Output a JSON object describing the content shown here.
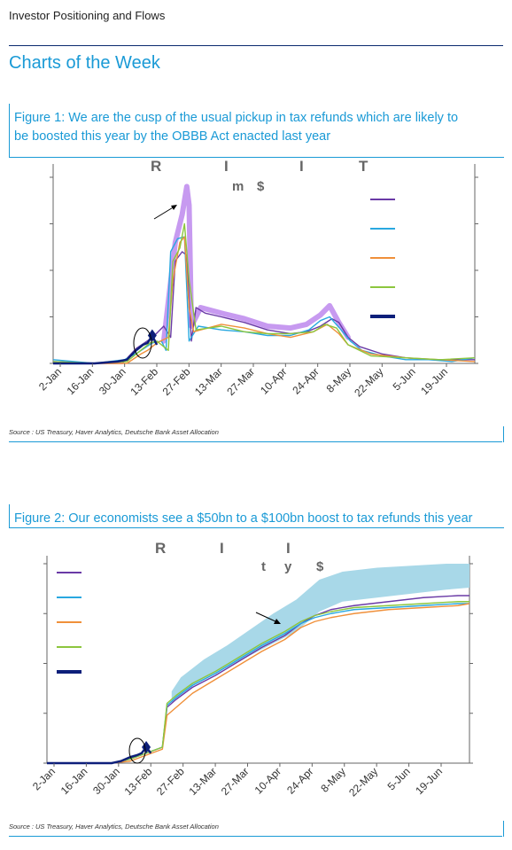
{
  "header": {
    "title": "Investor Positioning and Flows"
  },
  "section_title": "Charts of the Week",
  "figure1": {
    "title_line1": "Figure 1: We are the cusp of the usual pickup in tax refunds which are likely to",
    "title_line2": "be boosted this year by the OBBB Act enacted last year",
    "source": "Source : US Treasury, Haver Analytics, Deutsche Bank Asset Allocation",
    "chart_title_fragments": [
      "R",
      "I",
      "I",
      "T"
    ],
    "chart_subtitle_fragments": [
      "m",
      "$"
    ]
  },
  "figure2": {
    "title": "Figure 2: Our economists see a $50bn to a $100bn boost to tax refunds this year",
    "source": "Source : US Treasury, Haver Analytics, Deutsche Bank Asset Allocation",
    "chart_title_fragments": [
      "R",
      "I",
      "I"
    ],
    "chart_subtitle_fragments": [
      "t",
      "y",
      "$"
    ]
  },
  "colors": {
    "accent_blue": "#1a9ad6",
    "navy": "#0a2a6e",
    "purple": "#6a3aa6",
    "light_blue": "#29a8e0",
    "orange": "#f0903a",
    "green": "#8cc63e",
    "dark_navy": "#0d1f7a",
    "lavender": "#c79af0",
    "band": "#a8d8e8"
  },
  "chart_data": [
    {
      "type": "line",
      "x_ticks": [
        "2-Jan",
        "16-Jan",
        "30-Jan",
        "13-Feb",
        "27-Feb",
        "13-Mar",
        "27-Mar",
        "10-Apr",
        "24-Apr",
        "8-May",
        "22-May",
        "5-Jun",
        "19-Jun"
      ],
      "x_range": [
        2,
        185
      ],
      "ylim": [
        0,
        100
      ],
      "grid": false,
      "legend_entries": 5,
      "legend_position": "right",
      "series": [
        {
          "color": "#6a3aa6",
          "points": [
            [
              2,
              1
            ],
            [
              20,
              0
            ],
            [
              32,
              0
            ],
            [
              38,
              8
            ],
            [
              44,
              13
            ],
            [
              46,
              15
            ],
            [
              50,
              20
            ],
            [
              53,
              14
            ],
            [
              55,
              55
            ],
            [
              58,
              60
            ],
            [
              60,
              58
            ],
            [
              62,
              12
            ],
            [
              64,
              30
            ],
            [
              68,
              27
            ],
            [
              75,
              25
            ],
            [
              85,
              22
            ],
            [
              95,
              18
            ],
            [
              105,
              16
            ],
            [
              112,
              17
            ],
            [
              118,
              20
            ],
            [
              123,
              24
            ],
            [
              126,
              22
            ],
            [
              130,
              14
            ],
            [
              135,
              9
            ],
            [
              145,
              5
            ],
            [
              155,
              3
            ],
            [
              165,
              2
            ],
            [
              175,
              2
            ],
            [
              185,
              2
            ]
          ]
        },
        {
          "color": "#29a8e0",
          "points": [
            [
              2,
              2
            ],
            [
              20,
              0
            ],
            [
              33,
              2
            ],
            [
              39,
              6
            ],
            [
              45,
              11
            ],
            [
              49,
              12
            ],
            [
              51,
              7
            ],
            [
              53,
              60
            ],
            [
              56,
              67
            ],
            [
              59,
              68
            ],
            [
              61,
              12
            ],
            [
              65,
              20
            ],
            [
              75,
              18
            ],
            [
              85,
              17
            ],
            [
              95,
              15
            ],
            [
              105,
              15
            ],
            [
              113,
              18
            ],
            [
              118,
              23
            ],
            [
              122,
              25
            ],
            [
              127,
              18
            ],
            [
              131,
              12
            ],
            [
              136,
              7
            ],
            [
              145,
              4
            ],
            [
              155,
              2
            ],
            [
              165,
              2
            ],
            [
              175,
              1
            ],
            [
              185,
              3
            ]
          ]
        },
        {
          "color": "#f0903a",
          "points": [
            [
              2,
              0
            ],
            [
              20,
              0
            ],
            [
              34,
              0
            ],
            [
              40,
              5
            ],
            [
              43,
              7
            ],
            [
              47,
              11
            ],
            [
              52,
              14
            ],
            [
              54,
              45
            ],
            [
              57,
              65
            ],
            [
              59,
              68
            ],
            [
              61,
              30
            ],
            [
              63,
              17
            ],
            [
              75,
              21
            ],
            [
              85,
              19
            ],
            [
              95,
              16
            ],
            [
              105,
              14
            ],
            [
              115,
              17
            ],
            [
              121,
              21
            ],
            [
              126,
              16
            ],
            [
              130,
              10
            ],
            [
              140,
              5
            ],
            [
              155,
              3
            ],
            [
              170,
              2
            ],
            [
              185,
              1
            ]
          ]
        },
        {
          "color": "#8cc63e",
          "points": [
            [
              2,
              1
            ],
            [
              20,
              0
            ],
            [
              34,
              1
            ],
            [
              40,
              7
            ],
            [
              44,
              11
            ],
            [
              47,
              12
            ],
            [
              52,
              7
            ],
            [
              54,
              55
            ],
            [
              57,
              62
            ],
            [
              59,
              75
            ],
            [
              61,
              45
            ],
            [
              64,
              18
            ],
            [
              75,
              20
            ],
            [
              85,
              17
            ],
            [
              95,
              16
            ],
            [
              105,
              16
            ],
            [
              115,
              17
            ],
            [
              120,
              21
            ],
            [
              125,
              19
            ],
            [
              130,
              10
            ],
            [
              140,
              4
            ],
            [
              155,
              3
            ],
            [
              170,
              2
            ],
            [
              185,
              3
            ]
          ]
        },
        {
          "color": "#0d1f7a",
          "points": [
            [
              2,
              0
            ],
            [
              10,
              0
            ],
            [
              20,
              0
            ],
            [
              30,
              1
            ],
            [
              34,
              2
            ],
            [
              38,
              7
            ],
            [
              41,
              10
            ],
            [
              43,
              11
            ],
            [
              45,
              15
            ],
            [
              47,
              10
            ]
          ]
        }
      ],
      "range_band": {
        "color": "#c79af0",
        "points": [
          [
            50,
            12
          ],
          [
            55,
            65
          ],
          [
            58,
            80
          ],
          [
            60,
            95
          ],
          [
            61,
            85
          ],
          [
            62,
            20
          ],
          [
            66,
            30
          ],
          [
            75,
            27
          ],
          [
            85,
            24
          ],
          [
            95,
            20
          ],
          [
            105,
            19
          ],
          [
            112,
            21
          ],
          [
            118,
            26
          ],
          [
            122,
            31
          ],
          [
            126,
            22
          ],
          [
            130,
            14
          ]
        ]
      }
    },
    {
      "type": "line",
      "x_ticks": [
        "2-Jan",
        "16-Jan",
        "30-Jan",
        "13-Feb",
        "27-Feb",
        "13-Mar",
        "27-Mar",
        "10-Apr",
        "24-Apr",
        "8-May",
        "22-May",
        "5-Jun",
        "19-Jun"
      ],
      "x_range": [
        2,
        185
      ],
      "ylim": [
        0,
        100
      ],
      "grid": false,
      "legend_entries": 5,
      "legend_position": "top-left",
      "series": [
        {
          "color": "#6a3aa6",
          "points": [
            [
              2,
              0
            ],
            [
              30,
              0
            ],
            [
              38,
              2
            ],
            [
              45,
              5
            ],
            [
              52,
              8
            ],
            [
              54,
              28
            ],
            [
              58,
              32
            ],
            [
              65,
              38
            ],
            [
              75,
              44
            ],
            [
              85,
              51
            ],
            [
              95,
              58
            ],
            [
              105,
              64
            ],
            [
              112,
              70
            ],
            [
              118,
              74
            ],
            [
              125,
              77
            ],
            [
              135,
              79
            ],
            [
              150,
              81
            ],
            [
              165,
              83
            ],
            [
              180,
              84
            ],
            [
              185,
              84
            ]
          ]
        },
        {
          "color": "#29a8e0",
          "points": [
            [
              2,
              0
            ],
            [
              30,
              0
            ],
            [
              38,
              2
            ],
            [
              45,
              5
            ],
            [
              52,
              8
            ],
            [
              54,
              29
            ],
            [
              58,
              33
            ],
            [
              65,
              39
            ],
            [
              75,
              45
            ],
            [
              85,
              52
            ],
            [
              95,
              59
            ],
            [
              105,
              65
            ],
            [
              112,
              70
            ],
            [
              118,
              73
            ],
            [
              125,
              75
            ],
            [
              135,
              77
            ],
            [
              150,
              78
            ],
            [
              165,
              79
            ],
            [
              180,
              80
            ],
            [
              185,
              80
            ]
          ]
        },
        {
          "color": "#f0903a",
          "points": [
            [
              2,
              0
            ],
            [
              30,
              0
            ],
            [
              38,
              1
            ],
            [
              45,
              4
            ],
            [
              52,
              7
            ],
            [
              54,
              24
            ],
            [
              58,
              28
            ],
            [
              65,
              35
            ],
            [
              75,
              42
            ],
            [
              85,
              49
            ],
            [
              95,
              56
            ],
            [
              105,
              62
            ],
            [
              112,
              68
            ],
            [
              118,
              71
            ],
            [
              125,
              73
            ],
            [
              135,
              75
            ],
            [
              150,
              77
            ],
            [
              165,
              78
            ],
            [
              180,
              79
            ],
            [
              185,
              80
            ]
          ]
        },
        {
          "color": "#8cc63e",
          "points": [
            [
              2,
              0
            ],
            [
              30,
              0
            ],
            [
              38,
              2
            ],
            [
              45,
              5
            ],
            [
              52,
              8
            ],
            [
              54,
              30
            ],
            [
              58,
              34
            ],
            [
              65,
              40
            ],
            [
              75,
              46
            ],
            [
              85,
              53
            ],
            [
              95,
              60
            ],
            [
              105,
              66
            ],
            [
              112,
              71
            ],
            [
              118,
              74
            ],
            [
              125,
              76
            ],
            [
              135,
              78
            ],
            [
              150,
              79
            ],
            [
              165,
              80
            ],
            [
              180,
              81
            ],
            [
              185,
              81
            ]
          ]
        },
        {
          "color": "#0d1f7a",
          "points": [
            [
              2,
              0
            ],
            [
              10,
              0
            ],
            [
              20,
              0
            ],
            [
              30,
              0
            ],
            [
              34,
              1
            ],
            [
              38,
              3
            ],
            [
              41,
              4
            ],
            [
              43,
              5
            ],
            [
              45,
              8
            ],
            [
              47,
              5
            ]
          ]
        }
      ],
      "range_band": {
        "color": "#a8d8e8",
        "upper": [
          [
            56,
            36
          ],
          [
            60,
            43
          ],
          [
            70,
            52
          ],
          [
            80,
            59
          ],
          [
            90,
            67
          ],
          [
            100,
            75
          ],
          [
            110,
            82
          ],
          [
            115,
            87
          ],
          [
            120,
            92
          ],
          [
            130,
            96
          ],
          [
            145,
            98
          ],
          [
            160,
            99
          ],
          [
            175,
            100
          ],
          [
            185,
            100
          ]
        ],
        "lower": [
          [
            56,
            30
          ],
          [
            60,
            35
          ],
          [
            70,
            42
          ],
          [
            80,
            48
          ],
          [
            90,
            54
          ],
          [
            100,
            60
          ],
          [
            110,
            66
          ],
          [
            115,
            71
          ],
          [
            120,
            76
          ],
          [
            130,
            81
          ],
          [
            145,
            83
          ],
          [
            160,
            85
          ],
          [
            175,
            87
          ],
          [
            185,
            88
          ]
        ]
      }
    }
  ]
}
